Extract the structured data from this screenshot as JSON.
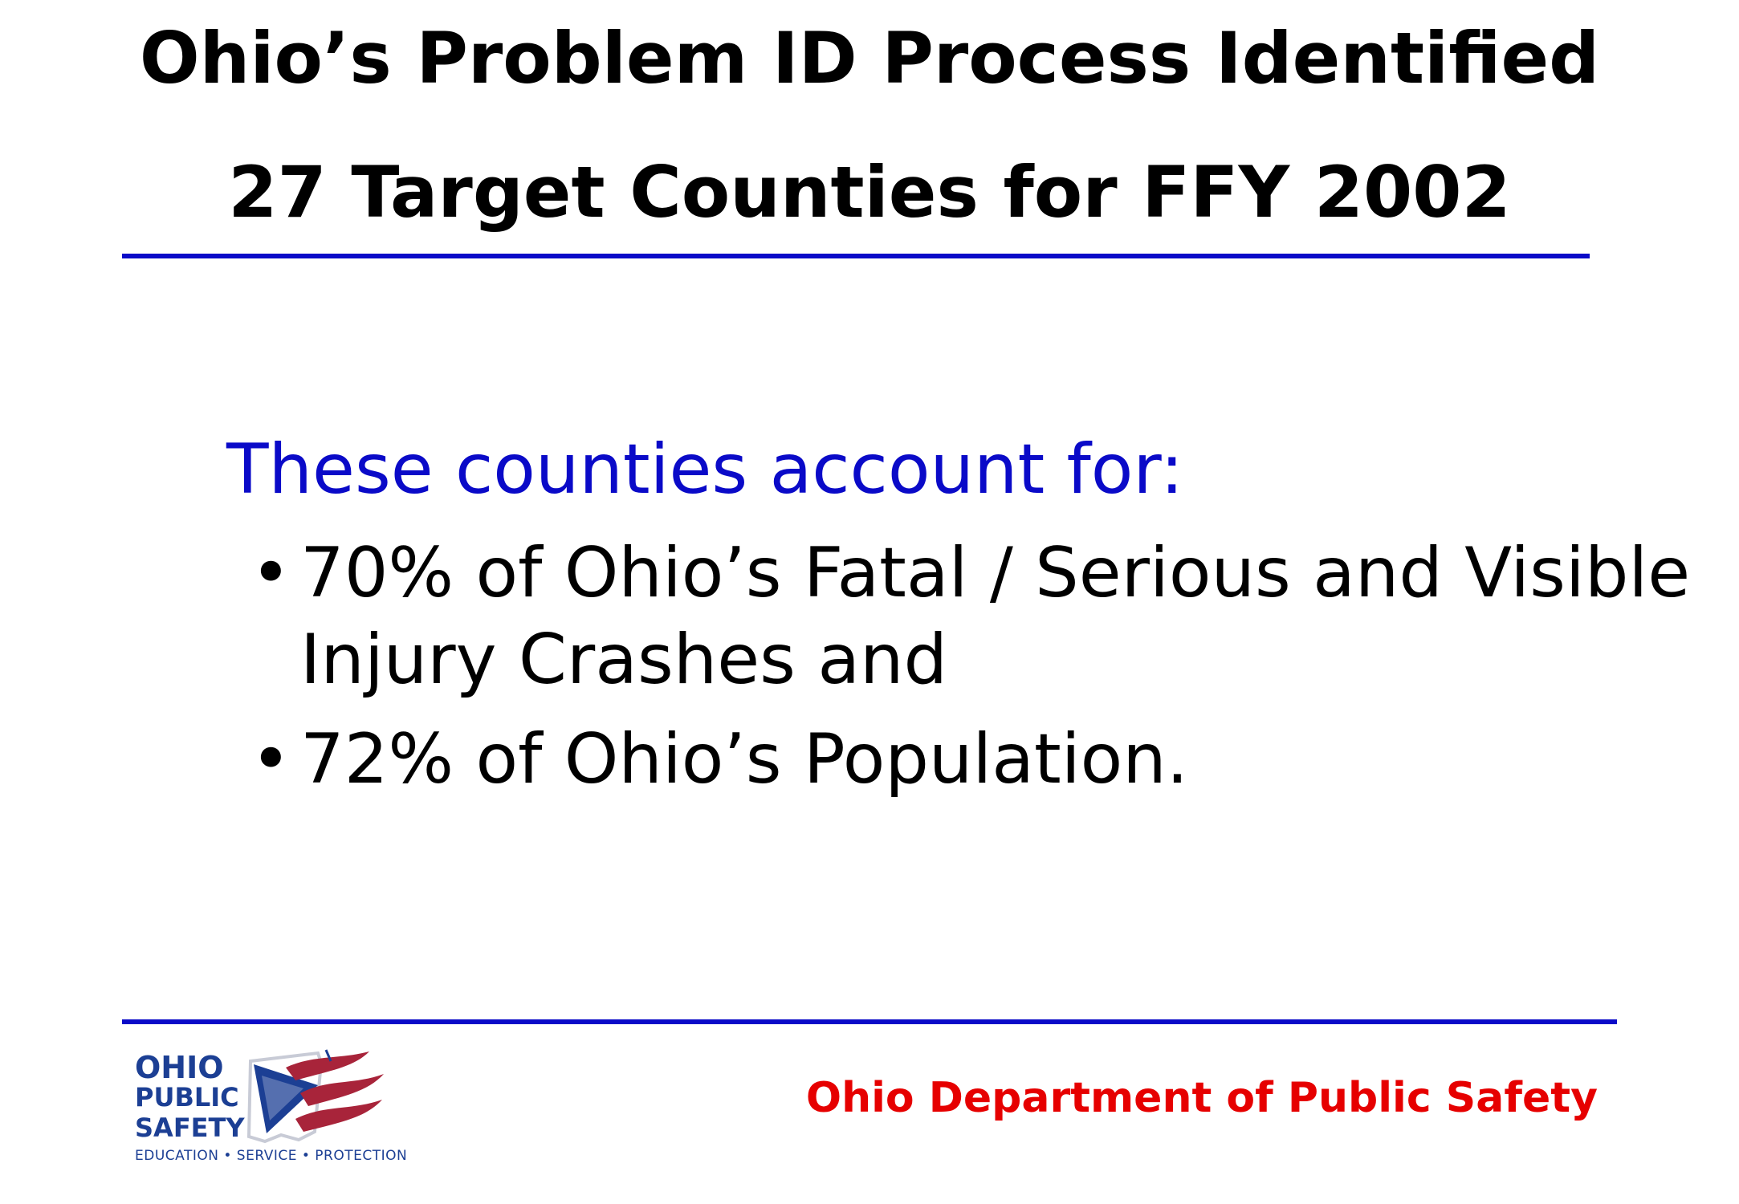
{
  "slide": {
    "title_line1": "Ohio’s Problem ID Process Identified",
    "title_line2": "27 Target Counties for FFY 2002",
    "lead": "These counties account for:",
    "bullets": [
      {
        "marker": "•",
        "line1": "70% of Ohio’s Fatal / Serious and Visible",
        "line2": "Injury Crashes and"
      },
      {
        "marker": "•",
        "line1": "72% of Ohio’s Population."
      }
    ],
    "footer": "Ohio Department of Public Safety"
  },
  "logo": {
    "word1": "OHIO",
    "word2": "PUBLIC",
    "word3": "SAFETY",
    "tagline": "EDUCATION • SERVICE • PROTECTION"
  },
  "colors": {
    "accent_blue": "#0a0ac8",
    "footer_red": "#e60000",
    "logo_blue": "#1c3f94",
    "logo_red": "#a8243a"
  }
}
